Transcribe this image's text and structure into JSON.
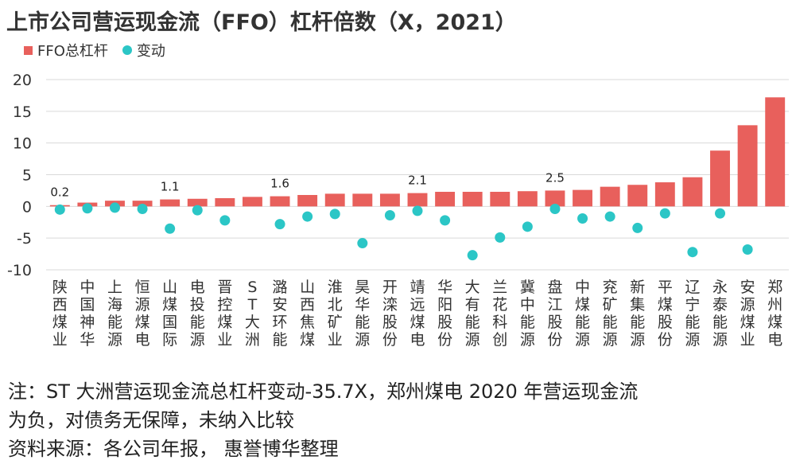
{
  "title": "上市公司营运现金流（FFO）杠杆倍数（X，2021）",
  "legend": {
    "bar_label": "FFO总杠杆",
    "dot_label": "变动"
  },
  "notes": {
    "line1": "注：ST 大洲营运现金流总杠杆变动-35.7X，郑州煤电 2020 年营运现金流",
    "line2": "为负，对债务无保障，未纳入比较",
    "source": "资料来源：各公司年报， 惠誉博华整理"
  },
  "colors": {
    "bar": "#e8605c",
    "dot": "#2bc6c6",
    "grid": "#d9d9d9"
  },
  "chart_data": {
    "type": "bar",
    "title": "上市公司营运现金流（FFO）杠杆倍数（X，2021）",
    "ylim": [
      -10,
      20
    ],
    "yticks": [
      -10,
      -5,
      0,
      5,
      10,
      15,
      20
    ],
    "grid": true,
    "legend_position": "top-left",
    "categories": [
      "陕西煤业",
      "中国神华",
      "上海能源",
      "恒源煤电",
      "山煤国际",
      "电投能源",
      "晋控煤业",
      "ST大洲",
      "潞安环能",
      "山西焦煤",
      "淮北矿业",
      "昊华能源",
      "开滦股份",
      "靖远煤电",
      "华阳股份",
      "大有能源",
      "兰花科创",
      "冀中能源",
      "盘江股份",
      "中煤能源",
      "兖矿能源",
      "新集能源",
      "平煤股份",
      "辽宁能源",
      "永泰能源",
      "安源煤业",
      "郑州煤电"
    ],
    "series": [
      {
        "name": "FFO总杠杆",
        "type": "bar",
        "values": [
          0.2,
          0.6,
          0.9,
          0.9,
          1.1,
          1.2,
          1.3,
          1.5,
          1.6,
          1.8,
          2.0,
          2.0,
          2.0,
          2.1,
          2.3,
          2.3,
          2.3,
          2.4,
          2.5,
          2.6,
          3.1,
          3.4,
          3.8,
          4.6,
          8.8,
          12.8,
          17.2
        ]
      },
      {
        "name": "变动",
        "type": "scatter",
        "values": [
          -0.5,
          -0.3,
          -0.2,
          -0.4,
          -3.5,
          -0.6,
          -2.2,
          null,
          -2.8,
          -1.6,
          -1.2,
          -5.8,
          -1.4,
          -0.7,
          -2.2,
          -7.7,
          -4.9,
          -3.2,
          -0.4,
          -1.9,
          -1.6,
          -3.4,
          -1.1,
          -7.2,
          -1.1,
          -6.8,
          null
        ]
      }
    ],
    "data_labels": [
      {
        "index": 0,
        "text": "0.2"
      },
      {
        "index": 4,
        "text": "1.1"
      },
      {
        "index": 8,
        "text": "1.6"
      },
      {
        "index": 13,
        "text": "2.1"
      },
      {
        "index": 18,
        "text": "2.5"
      }
    ]
  }
}
